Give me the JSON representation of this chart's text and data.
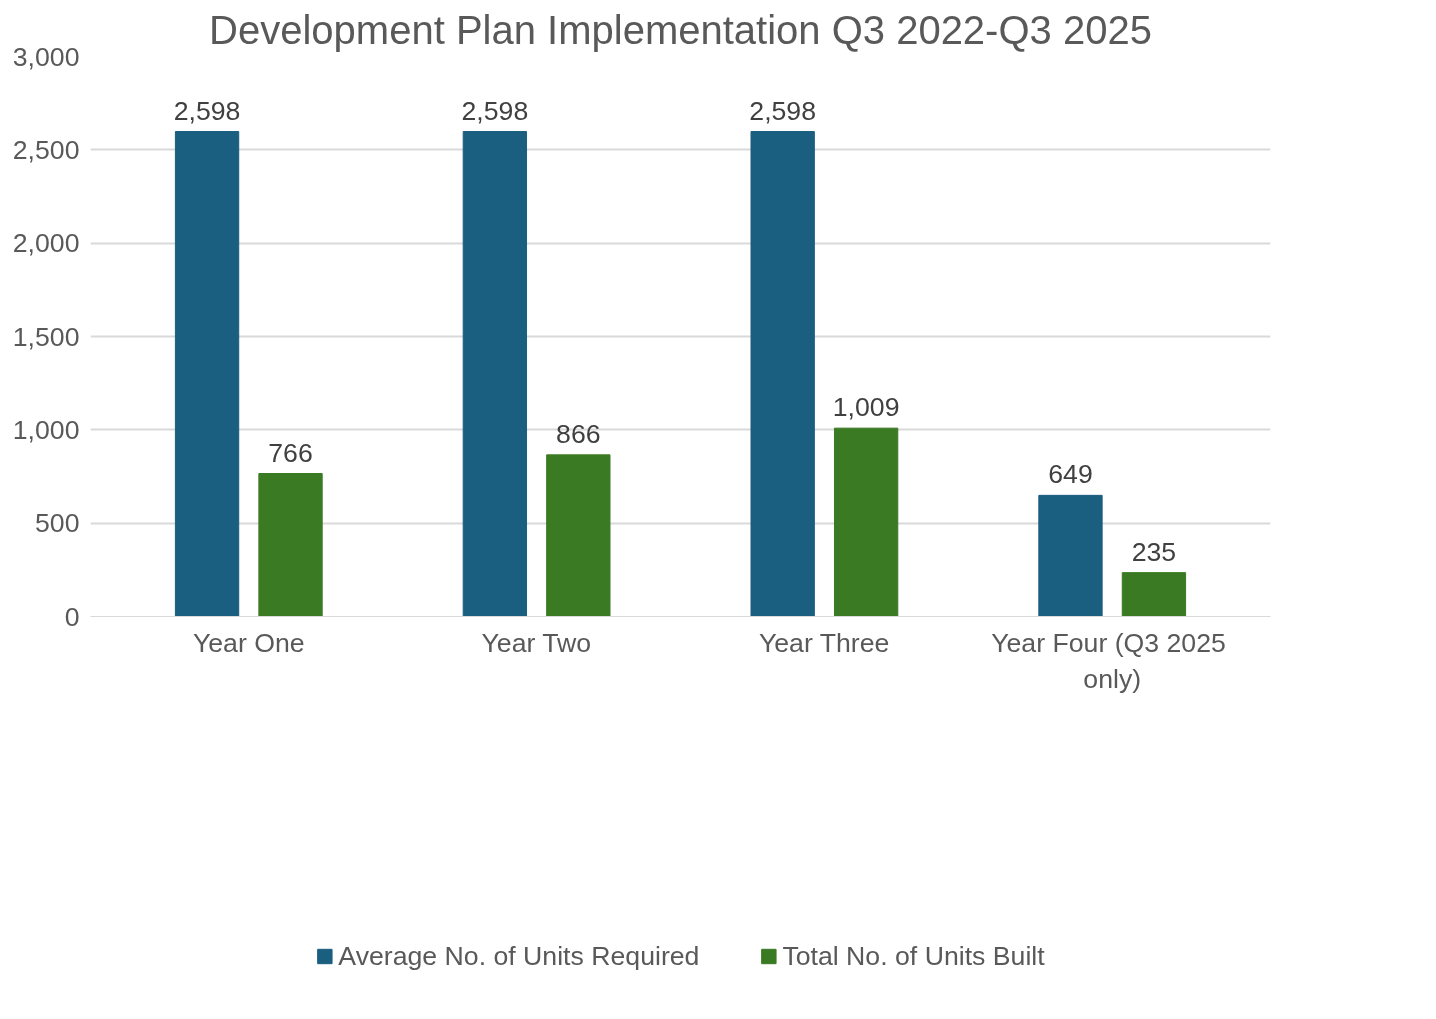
{
  "chart_data": {
    "type": "bar",
    "title": "Development Plan Implementation Q3 2022-Q3 2025",
    "categories": [
      "Year One",
      "Year Two",
      "Year Three",
      "Year Four  (Q3 2025 only)"
    ],
    "series": [
      {
        "name": "Average No. of Units Required",
        "color": "#1a5e80",
        "values": [
          2598,
          2598,
          2598,
          649
        ],
        "value_labels": [
          "2,598",
          "2,598",
          "2,598",
          "649"
        ]
      },
      {
        "name": "Total No. of Units Built",
        "color": "#3a7a23",
        "values": [
          766,
          866,
          1009,
          235
        ],
        "value_labels": [
          "766",
          "866",
          "1,009",
          "235"
        ]
      }
    ],
    "ylim": [
      0,
      3000
    ],
    "yticks": [
      0,
      500,
      {
        "value": 1000,
        "label": "1,000"
      },
      {
        "value": 1500,
        "label": "1,500"
      },
      {
        "value": 2000,
        "label": "2,000"
      },
      {
        "value": 2500,
        "label": "2,500"
      },
      {
        "value": 3000,
        "label": "3,000"
      }
    ],
    "grid": "y",
    "legend": "bottom"
  }
}
